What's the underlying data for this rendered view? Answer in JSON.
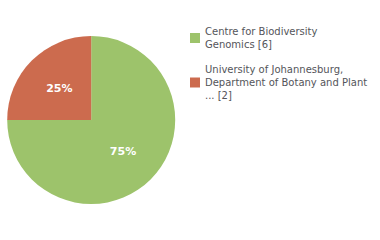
{
  "chart_data": {
    "type": "pie",
    "categories": [
      "Centre for Biodiversity\nGenomics [6]",
      "University of Johannesburg,\nDepartment of Botany and Plant\n... [2]"
    ],
    "values": [
      75,
      25
    ],
    "value_labels": [
      "75%",
      "25%"
    ],
    "colors": [
      "#9dc36b",
      "#cc6b4e"
    ],
    "data_labels": true,
    "legend": "upper right"
  }
}
